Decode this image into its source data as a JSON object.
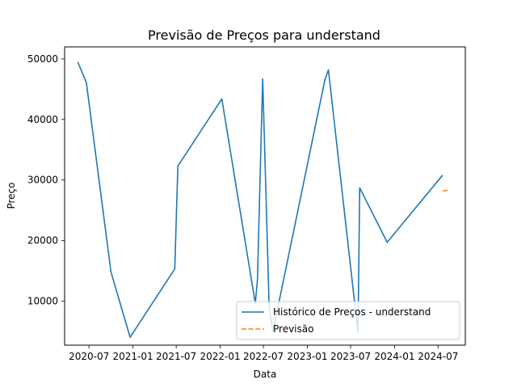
{
  "chart_data": {
    "type": "line",
    "title": "Previsão de Preços para understand",
    "xlabel": "Data",
    "ylabel": "Preço",
    "grid": false,
    "legend_position": "lower-right",
    "x_tick_labels": [
      "2020-07",
      "2021-01",
      "2021-07",
      "2022-01",
      "2022-07",
      "2023-01",
      "2023-07",
      "2024-01",
      "2024-07"
    ],
    "y_ticks": [
      10000,
      20000,
      30000,
      40000,
      50000
    ],
    "y_tick_labels": [
      "10000",
      "20000",
      "30000",
      "40000",
      "50000"
    ],
    "xlim": [
      "2020-03-21",
      "2024-10-23"
    ],
    "ylim": [
      2700,
      52000
    ],
    "series": [
      {
        "name": "Histórico de Preços - understand",
        "color": "#1f77b4",
        "style": "solid",
        "points": [
          {
            "x": "2020-05-15",
            "y": 49500
          },
          {
            "x": "2020-06-20",
            "y": 46100
          },
          {
            "x": "2020-10-01",
            "y": 14800
          },
          {
            "x": "2020-12-20",
            "y": 4000
          },
          {
            "x": "2021-06-25",
            "y": 15300
          },
          {
            "x": "2021-07-08",
            "y": 32300
          },
          {
            "x": "2022-01-08",
            "y": 43400
          },
          {
            "x": "2022-05-28",
            "y": 9600
          },
          {
            "x": "2022-06-06",
            "y": 13500
          },
          {
            "x": "2022-06-28",
            "y": 46700
          },
          {
            "x": "2022-07-25",
            "y": 9000
          },
          {
            "x": "2022-08-10",
            "y": 5000
          },
          {
            "x": "2023-03-15",
            "y": 46500
          },
          {
            "x": "2023-03-30",
            "y": 48200
          },
          {
            "x": "2023-07-25",
            "y": 7200
          },
          {
            "x": "2023-08-01",
            "y": 4800
          },
          {
            "x": "2023-08-08",
            "y": 28700
          },
          {
            "x": "2023-12-01",
            "y": 19700
          },
          {
            "x": "2024-07-20",
            "y": 30800
          }
        ]
      },
      {
        "name": "Previsão",
        "color": "#ff7f0e",
        "style": "dashed",
        "points": [
          {
            "x": "2024-07-20",
            "y": 28200
          },
          {
            "x": "2024-08-10",
            "y": 28300
          }
        ]
      }
    ]
  }
}
